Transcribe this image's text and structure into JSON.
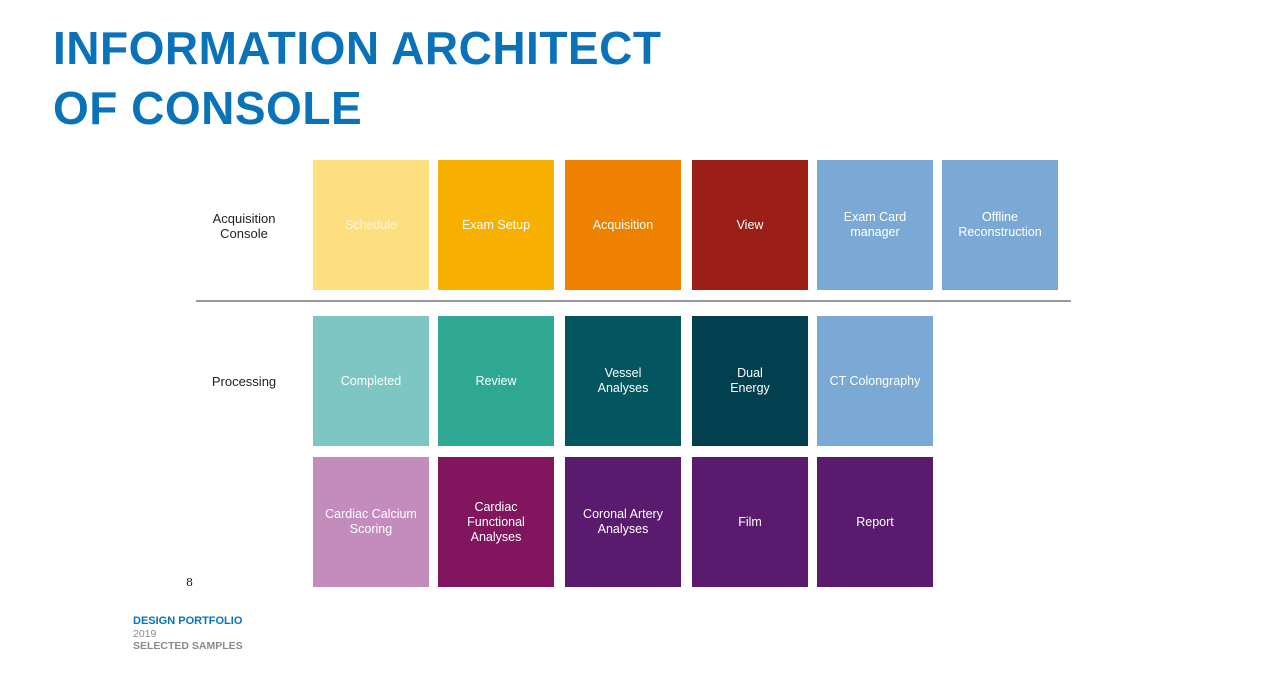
{
  "title": {
    "line1": "INFORMATION ARCHITECT",
    "line2": "OF CONSOLE"
  },
  "rows": {
    "acquisition_label": "Acquisition\nConsole",
    "processing_label": "Processing"
  },
  "tiles": {
    "schedule": {
      "label": "Schedule",
      "color": "#fedf7f"
    },
    "exam_setup": {
      "label": "Exam Setup",
      "color": "#f8b000"
    },
    "acquisition": {
      "label": "Acquisition",
      "color": "#ee8100"
    },
    "view": {
      "label": "View",
      "color": "#9b1f17"
    },
    "exam_card_manager": {
      "label": "Exam Card\nmanager",
      "color": "#7aa9d6"
    },
    "offline_reconstruction": {
      "label": "Offline\nReconstruction",
      "color": "#7aa9d6"
    },
    "completed": {
      "label": "Completed",
      "color": "#7ec6c4"
    },
    "review": {
      "label": "Review",
      "color": "#2fa893"
    },
    "vessel_analyses": {
      "label": "Vessel\nAnalyses",
      "color": "#03565f"
    },
    "dual_energy": {
      "label": "Dual\nEnergy",
      "color": "#023f4f"
    },
    "ct_colongraphy": {
      "label": "CT Colongraphy",
      "color": "#7aa9d6"
    },
    "cardiac_calcium_scoring": {
      "label": "Cardiac Calcium\nScoring",
      "color": "#c38cbd"
    },
    "cardiac_functional_analyses": {
      "label": "Cardiac Functional\nAnalyses",
      "color": "#82165e"
    },
    "coronal_artery_analyses": {
      "label": "Coronal Artery\nAnalyses",
      "color": "#5a1b6f"
    },
    "film": {
      "label": "Film",
      "color": "#5a1b6f"
    },
    "report": {
      "label": "Report",
      "color": "#5a1b6f"
    }
  },
  "page_number": "8",
  "footer": {
    "brand": "DESIGN PORTFOLIO",
    "year": "2019",
    "subtitle": "SELECTED SAMPLES"
  }
}
